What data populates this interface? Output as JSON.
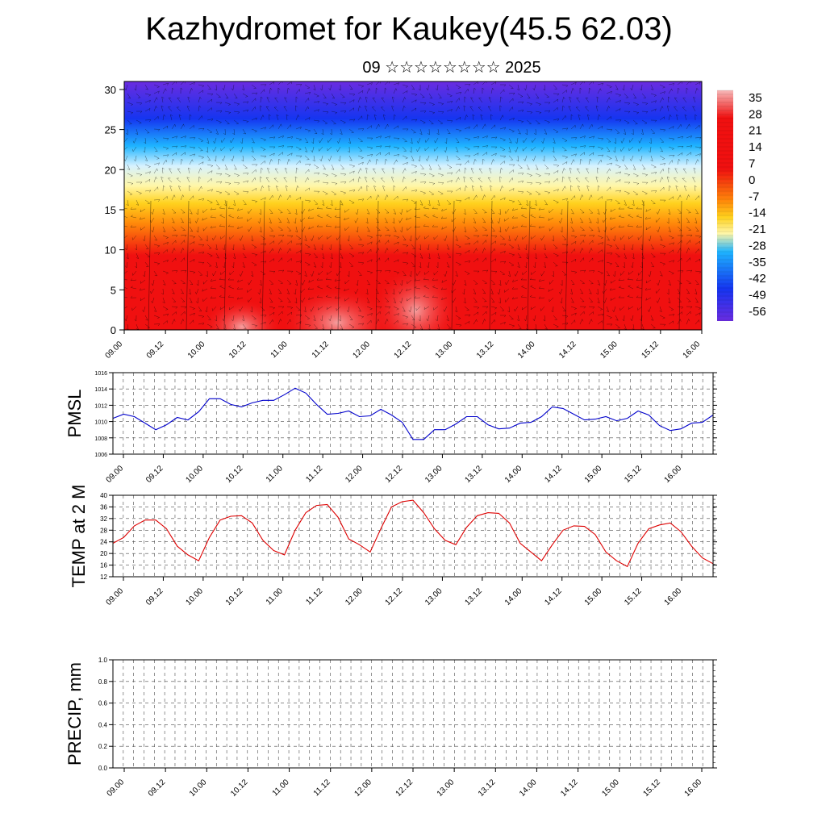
{
  "header": {
    "title": "Kazhydromet for Kaukey(45.5 62.03)",
    "subtitle": "09 ☆☆☆☆☆☆☆☆ 2025"
  },
  "chart_data": [
    {
      "type": "heatmap",
      "title": "",
      "xlabel": "",
      "ylabel": "",
      "x_tick_labels": [
        "09.00",
        "09.12",
        "10.00",
        "10.12",
        "11.00",
        "11.12",
        "12.00",
        "12.12",
        "13.00",
        "13.12",
        "14.00",
        "14.12",
        "15.00",
        "15.12",
        "16.00"
      ],
      "yticks": [
        0,
        5,
        10,
        15,
        20,
        25,
        30
      ],
      "ylim": [
        0,
        31
      ],
      "colorbar_labels": [
        "35",
        "28",
        "21",
        "14",
        "7",
        "0",
        "-7",
        "-14",
        "-21",
        "-28",
        "-35",
        "-42",
        "-49",
        "-56"
      ],
      "overlay": "wind streamlines/barbs",
      "colors": {
        "cold_top": "#6a2ce0",
        "cold": "#1535f0",
        "cool": "#1eb4ff",
        "pale": "#d6f2ff",
        "neutral": "#fff6a8",
        "warm": "#ffd21e",
        "orange": "#ff8a0a",
        "hot": "#f01010",
        "peak": "#f7b8b8"
      }
    },
    {
      "type": "line",
      "ylabel": "PMSL",
      "ylim": [
        1006,
        1016
      ],
      "yticks": [
        1006,
        1008,
        1010,
        1012,
        1014,
        1016
      ],
      "x_tick_labels": [
        "09.00",
        "09.12",
        "10.00",
        "10.12",
        "11.00",
        "11.12",
        "12.00",
        "12.12",
        "13.00",
        "13.12",
        "14.00",
        "14.12",
        "15.00",
        "15.12",
        "16.00"
      ],
      "color": "#0000cc",
      "values": [
        1010.4,
        1010.9,
        1010.6,
        1009.8,
        1009.0,
        1009.6,
        1010.5,
        1010.2,
        1011.2,
        1012.8,
        1012.8,
        1012.1,
        1011.8,
        1012.3,
        1012.6,
        1012.6,
        1013.3,
        1014.1,
        1013.5,
        1012.1,
        1010.9,
        1011.0,
        1011.3,
        1010.6,
        1010.7,
        1011.5,
        1010.8,
        1009.9,
        1007.8,
        1007.8,
        1009.0,
        1009.0,
        1009.7,
        1010.6,
        1010.6,
        1009.6,
        1009.1,
        1009.2,
        1009.8,
        1009.9,
        1010.6,
        1011.8,
        1011.6,
        1010.9,
        1010.2,
        1010.3,
        1010.6,
        1010.1,
        1010.4,
        1011.3,
        1010.8,
        1009.5,
        1008.9,
        1009.1,
        1009.8,
        1009.9,
        1010.8
      ]
    },
    {
      "type": "line",
      "ylabel": "TEMP at 2 M",
      "ylim": [
        12,
        40
      ],
      "yticks": [
        12,
        16,
        20,
        24,
        28,
        32,
        36,
        40
      ],
      "x_tick_labels": [
        "09.00",
        "09.12",
        "10.00",
        "10.12",
        "11.00",
        "11.12",
        "12.00",
        "12.12",
        "13.00",
        "13.12",
        "14.00",
        "14.12",
        "15.00",
        "15.12",
        "16.00"
      ],
      "color": "#dd0000",
      "values": [
        23.5,
        25.5,
        29.5,
        31.5,
        31.5,
        28.5,
        22.5,
        19.5,
        17.5,
        25.5,
        31.5,
        32.8,
        33.0,
        30.5,
        24.5,
        21.0,
        19.5,
        28.0,
        34.0,
        36.5,
        36.8,
        32.5,
        25.0,
        23.0,
        20.5,
        28.5,
        36.0,
        37.8,
        38.3,
        34.0,
        28.5,
        24.5,
        23.0,
        29.0,
        33.0,
        34.0,
        33.8,
        30.5,
        23.5,
        20.5,
        17.5,
        23.0,
        28.0,
        29.5,
        29.3,
        26.5,
        20.5,
        17.5,
        15.5,
        23.5,
        28.5,
        29.8,
        30.5,
        27.5,
        22.5,
        18.5,
        16.5
      ]
    },
    {
      "type": "line",
      "ylabel": "PRECIP, mm",
      "ylim": [
        0,
        1
      ],
      "yticks": [
        "0.0",
        "0.2",
        "0.4",
        "0.6",
        "0.8",
        "1.0"
      ],
      "x_tick_labels": [
        "09.00",
        "09.12",
        "10.00",
        "10.12",
        "11.00",
        "11.12",
        "12.00",
        "12.12",
        "13.00",
        "13.12",
        "14.00",
        "14.12",
        "15.00",
        "15.12",
        "16.00"
      ],
      "color": "#006400",
      "values": [
        0,
        0,
        0,
        0,
        0,
        0,
        0,
        0,
        0,
        0,
        0,
        0,
        0,
        0,
        0,
        0,
        0,
        0,
        0,
        0,
        0,
        0,
        0,
        0,
        0,
        0,
        0,
        0,
        0,
        0,
        0,
        0,
        0,
        0,
        0,
        0,
        0,
        0,
        0,
        0,
        0,
        0,
        0,
        0,
        0,
        0,
        0,
        0,
        0,
        0,
        0,
        0,
        0,
        0,
        0,
        0,
        0,
        0,
        0
      ]
    }
  ]
}
